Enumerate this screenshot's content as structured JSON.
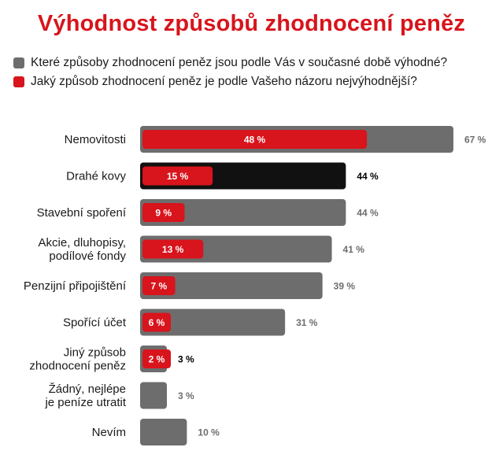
{
  "title": "Výhodnost způsobů zhodnocení peněz",
  "legend": [
    {
      "label": "Které způsoby zhodnocení peněz jsou podle Vás v současné době výhodné?",
      "color": "#6d6d6d"
    },
    {
      "label": "Jaký způsob zhodnocení peněz je podle Vašeho názoru nejvýhodnější?",
      "color": "#d8141c"
    }
  ],
  "chart_data": {
    "type": "bar",
    "orientation": "horizontal",
    "title": "Výhodnost způsobů zhodnocení peněz",
    "xlim": [
      0,
      100
    ],
    "grid": false,
    "legend_position": "top-left",
    "categories": [
      [
        "Nemovitosti"
      ],
      [
        "Drahé kovy"
      ],
      [
        "Stavební spoření"
      ],
      [
        "Akcie, dluhopisy,",
        "podílové fondy"
      ],
      [
        "Penzijní připojištění"
      ],
      [
        "Spořící účet"
      ],
      [
        "Jiný způsob",
        "zhodnocení peněz"
      ],
      [
        "Žádný, nejlépe",
        "je peníze utratit"
      ],
      [
        "Nevím"
      ]
    ],
    "series": [
      {
        "name": "Které způsoby zhodnocení peněz jsou podle Vás v současné době výhodné?",
        "color": "#6d6d6d",
        "values": [
          67,
          44,
          44,
          41,
          39,
          31,
          3,
          3,
          10
        ],
        "labels": [
          "67 %",
          "44 %",
          "44 %",
          "41 %",
          "39 %",
          "31 %",
          "3 %",
          "3 %",
          "10 %"
        ]
      },
      {
        "name": "Jaký způsob zhodnocení peněz je podle Vašeho názoru nejvýhodnější?",
        "color": "#d8141c",
        "values": [
          48,
          15,
          9,
          13,
          7,
          6,
          2,
          0,
          0
        ],
        "labels": [
          "48 %",
          "15 %",
          "9 %",
          "13 %",
          "7 %",
          "6 %",
          "2 %",
          "",
          ""
        ]
      }
    ],
    "highlight_rows": [
      1,
      6
    ],
    "highlight_color": "#111111"
  }
}
